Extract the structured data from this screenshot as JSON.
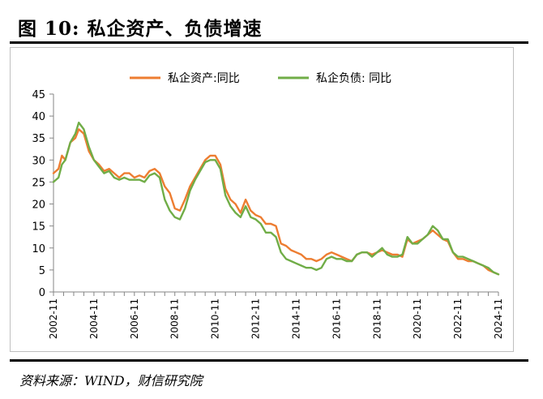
{
  "figure": {
    "title": "图 10:  私企资产、负债增速",
    "source": "资料来源：WIND，财信研究院"
  },
  "chart_data": {
    "type": "line",
    "title": "",
    "xlabel": "",
    "ylabel": "",
    "ylim": [
      0,
      45
    ],
    "yticks": [
      "0",
      "5",
      "10",
      "15",
      "20",
      "25",
      "30",
      "35",
      "40",
      "45"
    ],
    "xlim": [
      "2002-11",
      "2024-11"
    ],
    "xticks": [
      "2002-11",
      "2004-11",
      "2006-11",
      "2008-11",
      "2010-11",
      "2012-11",
      "2014-11",
      "2016-11",
      "2018-11",
      "2020-11",
      "2022-11",
      "2024-11"
    ],
    "grid": false,
    "legend_position": "top-center",
    "series": [
      {
        "name": "私企资产:同比",
        "color": "#ED7D31",
        "x": [
          "2002-11",
          "2003-02",
          "2003-04",
          "2003-06",
          "2003-09",
          "2003-12",
          "2004-02",
          "2004-05",
          "2004-08",
          "2004-11",
          "2005-02",
          "2005-05",
          "2005-08",
          "2005-11",
          "2006-02",
          "2006-05",
          "2006-08",
          "2006-11",
          "2007-02",
          "2007-05",
          "2007-08",
          "2007-11",
          "2008-02",
          "2008-05",
          "2008-08",
          "2008-11",
          "2009-02",
          "2009-05",
          "2009-08",
          "2009-11",
          "2010-02",
          "2010-05",
          "2010-08",
          "2010-11",
          "2011-02",
          "2011-05",
          "2011-08",
          "2011-11",
          "2012-02",
          "2012-05",
          "2012-08",
          "2012-11",
          "2013-02",
          "2013-05",
          "2013-08",
          "2013-11",
          "2014-02",
          "2014-05",
          "2014-08",
          "2014-11",
          "2015-02",
          "2015-05",
          "2015-08",
          "2015-11",
          "2016-02",
          "2016-05",
          "2016-08",
          "2016-11",
          "2017-02",
          "2017-05",
          "2017-08",
          "2017-11",
          "2018-02",
          "2018-05",
          "2018-08",
          "2018-11",
          "2019-02",
          "2019-05",
          "2019-08",
          "2019-11",
          "2020-02",
          "2020-05",
          "2020-08",
          "2020-11",
          "2021-02",
          "2021-05",
          "2021-08",
          "2021-11",
          "2022-02",
          "2022-05",
          "2022-08",
          "2022-11",
          "2023-02",
          "2023-05",
          "2023-08",
          "2023-11",
          "2024-02",
          "2024-05",
          "2024-08",
          "2024-11"
        ],
        "values": [
          27,
          28,
          31,
          30,
          34,
          35,
          37,
          36,
          32,
          30,
          29,
          27.5,
          28,
          27,
          26,
          27,
          27,
          26,
          26.5,
          26,
          27.5,
          28,
          27,
          24,
          22.5,
          19,
          18.5,
          21,
          24,
          26,
          28,
          30,
          31,
          31,
          29,
          23.5,
          21,
          20,
          18,
          21,
          18.5,
          17.5,
          17,
          15.5,
          15.5,
          15,
          11,
          10.5,
          9.5,
          9,
          8.5,
          7.5,
          7.5,
          7,
          7.5,
          8.5,
          9,
          8.5,
          8,
          7.5,
          7,
          8.5,
          9,
          9,
          8.5,
          9,
          9.5,
          9,
          8.5,
          8.5,
          8,
          12,
          11,
          11.5,
          12,
          13,
          14,
          13,
          12,
          11.5,
          9,
          7.5,
          7.5,
          7,
          7,
          6.5,
          6,
          5,
          4.5,
          4
        ]
      },
      {
        "name": "私企负债:  同比",
        "color": "#70AD47",
        "x": [
          "2002-11",
          "2003-02",
          "2003-04",
          "2003-06",
          "2003-09",
          "2003-12",
          "2004-02",
          "2004-05",
          "2004-08",
          "2004-11",
          "2005-02",
          "2005-05",
          "2005-08",
          "2005-11",
          "2006-02",
          "2006-05",
          "2006-08",
          "2006-11",
          "2007-02",
          "2007-05",
          "2007-08",
          "2007-11",
          "2008-02",
          "2008-05",
          "2008-08",
          "2008-11",
          "2009-02",
          "2009-05",
          "2009-08",
          "2009-11",
          "2010-02",
          "2010-05",
          "2010-08",
          "2010-11",
          "2011-02",
          "2011-05",
          "2011-08",
          "2011-11",
          "2012-02",
          "2012-05",
          "2012-08",
          "2012-11",
          "2013-02",
          "2013-05",
          "2013-08",
          "2013-11",
          "2014-02",
          "2014-05",
          "2014-08",
          "2014-11",
          "2015-02",
          "2015-05",
          "2015-08",
          "2015-11",
          "2016-02",
          "2016-05",
          "2016-08",
          "2016-11",
          "2017-02",
          "2017-05",
          "2017-08",
          "2017-11",
          "2018-02",
          "2018-05",
          "2018-08",
          "2018-11",
          "2019-02",
          "2019-05",
          "2019-08",
          "2019-11",
          "2020-02",
          "2020-05",
          "2020-08",
          "2020-11",
          "2021-02",
          "2021-05",
          "2021-08",
          "2021-11",
          "2022-02",
          "2022-05",
          "2022-08",
          "2022-11",
          "2023-02",
          "2023-05",
          "2023-08",
          "2023-11",
          "2024-02",
          "2024-05",
          "2024-08",
          "2024-11"
        ],
        "values": [
          25,
          26,
          29,
          30,
          34,
          36,
          38.5,
          37,
          33,
          30,
          28.5,
          27,
          27.5,
          26,
          25.5,
          26,
          25.5,
          25.5,
          25.5,
          25,
          26.5,
          27,
          26,
          21,
          18.5,
          17,
          16.5,
          19,
          23,
          25.5,
          27.5,
          29.5,
          30,
          30,
          28,
          22,
          19.5,
          18,
          17,
          19.5,
          17,
          16.5,
          15.5,
          13.5,
          13.5,
          12.5,
          9,
          7.5,
          7,
          6.5,
          6,
          5.5,
          5.5,
          5,
          5.5,
          7.5,
          8,
          7.5,
          7.5,
          7,
          7,
          8.5,
          9,
          9,
          8,
          9,
          10,
          8.5,
          8,
          8,
          8.5,
          12.5,
          11,
          11,
          12,
          13,
          15,
          14,
          12,
          12,
          9,
          8,
          8,
          7.5,
          7,
          6.5,
          6,
          5.5,
          4.5,
          4
        ]
      }
    ]
  }
}
